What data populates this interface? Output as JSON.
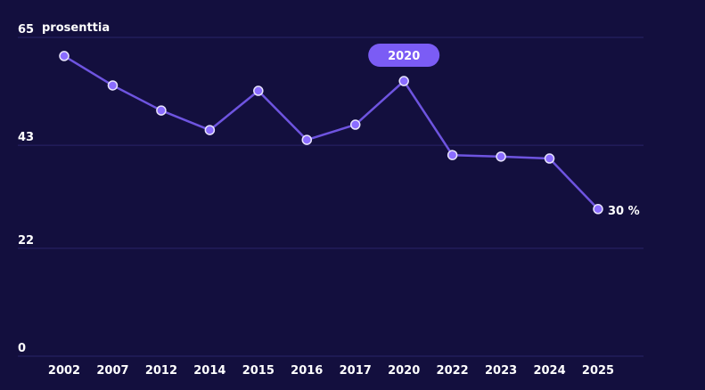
{
  "chart_data": {
    "type": "line",
    "ylabel": "prosenttia",
    "categories": [
      "2002",
      "2007",
      "2012",
      "2014",
      "2015",
      "2016",
      "2017",
      "2020",
      "2022",
      "2023",
      "2024",
      "2025"
    ],
    "series": [
      {
        "name": "prosenttia",
        "values": [
          61.2,
          55.2,
          50.1,
          46.1,
          54.1,
          44.1,
          47.2,
          56.1,
          41.0,
          40.7,
          40.3,
          30.0
        ]
      }
    ],
    "yticks": [
      0,
      22,
      43,
      65
    ],
    "ylim": [
      0,
      65
    ],
    "grid": true,
    "highlight_label": "2020",
    "end_label": "30 %",
    "colors": {
      "background": "#130f3e",
      "line": "#6e54e0",
      "marker": "#8a6cff",
      "grid": "#2a2468",
      "badge": "#7b5cf5"
    }
  }
}
